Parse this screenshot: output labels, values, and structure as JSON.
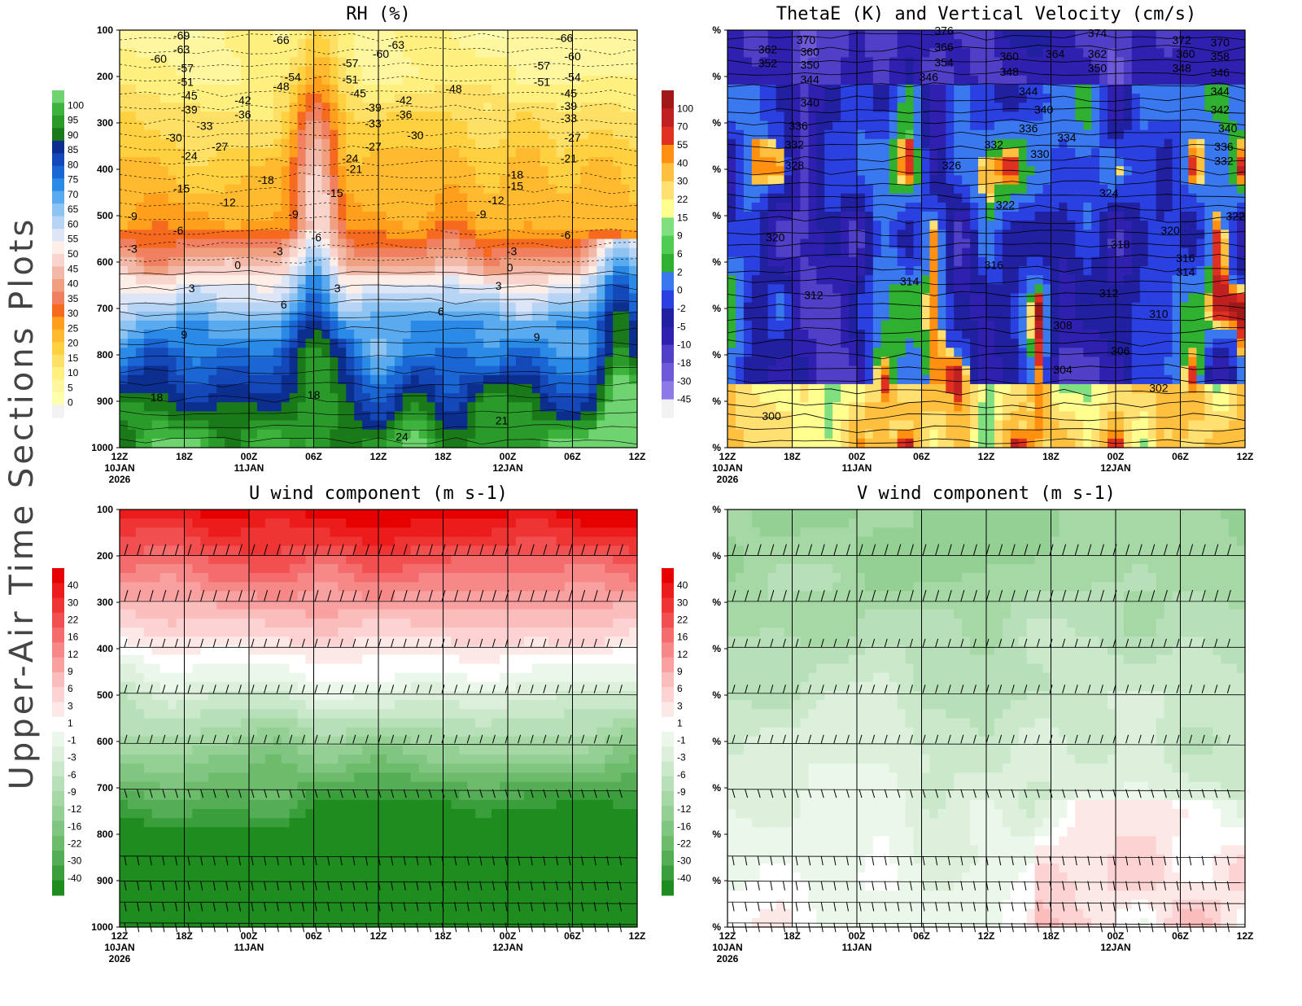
{
  "side_title": "Upper-Air Time Sections Plots",
  "colors": {
    "rh": [
      "#f2f2f2",
      "#ffffb0",
      "#fff7a0",
      "#fff080",
      "#ffe066",
      "#ffd040",
      "#ffba30",
      "#ff9f1c",
      "#f56a1e",
      "#f08060",
      "#f0a080",
      "#f2b8a8",
      "#f8d4cc",
      "#fdeee8",
      "#dde6f7",
      "#b8d4f5",
      "#8ec4f2",
      "#5aaaf0",
      "#2a8ae6",
      "#1a66d4",
      "#1448b8",
      "#0b2e8f",
      "#1a7a1a",
      "#2a9a2a",
      "#3db23d",
      "#6fd36f"
    ],
    "theta_w": [
      "#f2f2f2",
      "#8e7ae6",
      "#6e5ad8",
      "#5040c8",
      "#3020b0",
      "#2020a0",
      "#2a40e0",
      "#3a78f0",
      "#30b030",
      "#50cc50",
      "#80e080",
      "#ffff90",
      "#ffe070",
      "#ffc040",
      "#ff9010",
      "#e03020",
      "#c02020",
      "#a01818"
    ],
    "uv": [
      "#1e8c1e",
      "#3a9e3a",
      "#55ae55",
      "#6cbc6c",
      "#80c680",
      "#94d094",
      "#a6d8a6",
      "#b8e0b8",
      "#cae8ca",
      "#dcf0dc",
      "#ecf7ec",
      "#ffffff",
      "#fde8e8",
      "#fcd2d2",
      "#fbbcbc",
      "#f9a0a0",
      "#f78888",
      "#f56c6c",
      "#f25050",
      "#ef3434",
      "#ec1c1c",
      "#e60000"
    ]
  },
  "chart_data": [
    {
      "type": "heatmap",
      "id": "rh",
      "title": "RH (%)",
      "x_labels": [
        "12Z",
        "18Z",
        "00Z",
        "06Z",
        "12Z",
        "18Z",
        "00Z",
        "06Z",
        "12Z"
      ],
      "x_dates": {
        "0": "10JAN",
        "2": "11JAN",
        "6": "12JAN"
      },
      "x_year": "2026",
      "y_labels": [
        "100",
        "200",
        "300",
        "400",
        "500",
        "600",
        "700",
        "800",
        "900",
        "1000"
      ],
      "colorbar_ticks": [
        "100",
        "95",
        "90",
        "85",
        "80",
        "75",
        "70",
        "65",
        "60",
        "55",
        "50",
        "45",
        "40",
        "35",
        "30",
        "25",
        "20",
        "15",
        "10",
        "5",
        "0"
      ],
      "contour_labels": [
        {
          "text": "-69",
          "x": 1.4,
          "y": 120
        },
        {
          "text": "-63",
          "x": 1.4,
          "y": 150
        },
        {
          "text": "-66",
          "x": 4.0,
          "y": 130
        },
        {
          "text": "-63",
          "x": 7.0,
          "y": 140
        },
        {
          "text": "-66",
          "x": 11.4,
          "y": 125
        },
        {
          "text": "-60",
          "x": 0.8,
          "y": 170
        },
        {
          "text": "-57",
          "x": 1.5,
          "y": 190
        },
        {
          "text": "-60",
          "x": 6.6,
          "y": 160
        },
        {
          "text": "-60",
          "x": 11.6,
          "y": 165
        },
        {
          "text": "-57",
          "x": 5.8,
          "y": 180
        },
        {
          "text": "-57",
          "x": 10.8,
          "y": 185
        },
        {
          "text": "-54",
          "x": 4.3,
          "y": 210
        },
        {
          "text": "-54",
          "x": 11.6,
          "y": 210
        },
        {
          "text": "-51",
          "x": 1.5,
          "y": 220
        },
        {
          "text": "-51",
          "x": 5.8,
          "y": 215
        },
        {
          "text": "-51",
          "x": 10.8,
          "y": 220
        },
        {
          "text": "-48",
          "x": 4.0,
          "y": 230
        },
        {
          "text": "-48",
          "x": 8.5,
          "y": 235
        },
        {
          "text": "-45",
          "x": 1.6,
          "y": 250
        },
        {
          "text": "-45",
          "x": 6.0,
          "y": 245
        },
        {
          "text": "-45",
          "x": 11.5,
          "y": 245
        },
        {
          "text": "-42",
          "x": 3.0,
          "y": 260
        },
        {
          "text": "-42",
          "x": 7.2,
          "y": 260
        },
        {
          "text": "-39",
          "x": 1.6,
          "y": 280
        },
        {
          "text": "-39",
          "x": 6.4,
          "y": 275
        },
        {
          "text": "-39",
          "x": 11.5,
          "y": 272
        },
        {
          "text": "-36",
          "x": 3.0,
          "y": 290
        },
        {
          "text": "-36",
          "x": 7.2,
          "y": 290
        },
        {
          "text": "-33",
          "x": 2.0,
          "y": 315
        },
        {
          "text": "-33",
          "x": 6.4,
          "y": 310
        },
        {
          "text": "-33",
          "x": 11.5,
          "y": 298
        },
        {
          "text": "-30",
          "x": 1.2,
          "y": 340
        },
        {
          "text": "-30",
          "x": 7.5,
          "y": 335
        },
        {
          "text": "-27",
          "x": 2.4,
          "y": 360
        },
        {
          "text": "-27",
          "x": 6.4,
          "y": 360
        },
        {
          "text": "-27",
          "x": 11.6,
          "y": 340
        },
        {
          "text": "-24",
          "x": 1.6,
          "y": 380
        },
        {
          "text": "-24",
          "x": 5.8,
          "y": 385
        },
        {
          "text": "-21",
          "x": 5.9,
          "y": 408
        },
        {
          "text": "-21",
          "x": 11.5,
          "y": 385
        },
        {
          "text": "-18",
          "x": 3.6,
          "y": 432
        },
        {
          "text": "-18",
          "x": 10.1,
          "y": 420
        },
        {
          "text": "-15",
          "x": 1.4,
          "y": 450
        },
        {
          "text": "-15",
          "x": 5.4,
          "y": 460
        },
        {
          "text": "-15",
          "x": 10.1,
          "y": 445
        },
        {
          "text": "-12",
          "x": 2.6,
          "y": 480
        },
        {
          "text": "-12",
          "x": 9.6,
          "y": 475
        },
        {
          "text": "-9",
          "x": 0.2,
          "y": 510
        },
        {
          "text": "-9",
          "x": 4.4,
          "y": 505
        },
        {
          "text": "-9",
          "x": 9.3,
          "y": 505
        },
        {
          "text": "-6",
          "x": 1.4,
          "y": 540
        },
        {
          "text": "-6",
          "x": 5.0,
          "y": 555
        },
        {
          "text": "-6",
          "x": 11.5,
          "y": 550
        },
        {
          "text": "-3",
          "x": 0.2,
          "y": 580
        },
        {
          "text": "-3",
          "x": 4.0,
          "y": 585
        },
        {
          "text": "-3",
          "x": 10.1,
          "y": 585
        },
        {
          "text": "0",
          "x": 3.0,
          "y": 615
        },
        {
          "text": "0",
          "x": 10.1,
          "y": 620
        },
        {
          "text": "3",
          "x": 1.8,
          "y": 665
        },
        {
          "text": "3",
          "x": 5.6,
          "y": 665
        },
        {
          "text": "3",
          "x": 9.8,
          "y": 660
        },
        {
          "text": "6",
          "x": 4.2,
          "y": 700
        },
        {
          "text": "6",
          "x": 8.3,
          "y": 715
        },
        {
          "text": "9",
          "x": 1.6,
          "y": 765
        },
        {
          "text": "9",
          "x": 10.8,
          "y": 770
        },
        {
          "text": "18",
          "x": 0.8,
          "y": 900
        },
        {
          "text": "18",
          "x": 4.9,
          "y": 895
        },
        {
          "text": "21",
          "x": 9.8,
          "y": 950
        },
        {
          "text": "24",
          "x": 7.2,
          "y": 985
        }
      ]
    },
    {
      "type": "heatmap",
      "id": "theta",
      "title": "ThetaE (K) and Vertical Velocity (cm/s)",
      "x_labels": [
        "12Z",
        "18Z",
        "00Z",
        "06Z",
        "12Z",
        "18Z",
        "00Z",
        "06Z",
        "12Z"
      ],
      "x_dates": {
        "0": "10JAN",
        "2": "11JAN",
        "6": "12JAN"
      },
      "x_year": "2026",
      "y_labels": [
        "%",
        "%",
        "%",
        "%",
        "%",
        "%",
        "%",
        "%",
        "%",
        "%"
      ],
      "colorbar_ticks": [
        "100",
        "70",
        "55",
        "40",
        "30",
        "22",
        "15",
        "9",
        "6",
        "2",
        "0",
        "-2",
        "-5",
        "-10",
        "-18",
        "-30",
        "-45"
      ],
      "contour_labels": [
        {
          "text": "376",
          "x": 5.4,
          "y": 110
        },
        {
          "text": "374",
          "x": 9.4,
          "y": 115
        },
        {
          "text": "370",
          "x": 1.8,
          "y": 130
        },
        {
          "text": "372",
          "x": 11.6,
          "y": 130
        },
        {
          "text": "370",
          "x": 12.6,
          "y": 135
        },
        {
          "text": "362",
          "x": 0.8,
          "y": 150
        },
        {
          "text": "366",
          "x": 5.4,
          "y": 145
        },
        {
          "text": "360",
          "x": 1.9,
          "y": 155
        },
        {
          "text": "364",
          "x": 8.3,
          "y": 160
        },
        {
          "text": "362",
          "x": 9.4,
          "y": 160
        },
        {
          "text": "360",
          "x": 7.1,
          "y": 165
        },
        {
          "text": "360",
          "x": 11.7,
          "y": 160
        },
        {
          "text": "358",
          "x": 12.6,
          "y": 165
        },
        {
          "text": "352",
          "x": 0.8,
          "y": 180
        },
        {
          "text": "350",
          "x": 1.9,
          "y": 183
        },
        {
          "text": "354",
          "x": 5.4,
          "y": 178
        },
        {
          "text": "350",
          "x": 9.4,
          "y": 190
        },
        {
          "text": "348",
          "x": 7.1,
          "y": 198
        },
        {
          "text": "348",
          "x": 11.6,
          "y": 190
        },
        {
          "text": "346",
          "x": 5.0,
          "y": 210
        },
        {
          "text": "346",
          "x": 12.6,
          "y": 200
        },
        {
          "text": "344",
          "x": 1.9,
          "y": 215
        },
        {
          "text": "344",
          "x": 7.6,
          "y": 240
        },
        {
          "text": "344",
          "x": 12.6,
          "y": 240
        },
        {
          "text": "340",
          "x": 1.9,
          "y": 265
        },
        {
          "text": "340",
          "x": 8.0,
          "y": 280
        },
        {
          "text": "342",
          "x": 12.6,
          "y": 280
        },
        {
          "text": "336",
          "x": 1.6,
          "y": 315
        },
        {
          "text": "336",
          "x": 7.6,
          "y": 320
        },
        {
          "text": "340",
          "x": 12.8,
          "y": 320
        },
        {
          "text": "334",
          "x": 8.6,
          "y": 340
        },
        {
          "text": "332",
          "x": 1.5,
          "y": 355
        },
        {
          "text": "332",
          "x": 6.7,
          "y": 355
        },
        {
          "text": "330",
          "x": 7.9,
          "y": 375
        },
        {
          "text": "336",
          "x": 12.7,
          "y": 360
        },
        {
          "text": "332",
          "x": 12.7,
          "y": 390
        },
        {
          "text": "328",
          "x": 1.5,
          "y": 400
        },
        {
          "text": "326",
          "x": 5.6,
          "y": 400
        },
        {
          "text": "324",
          "x": 9.7,
          "y": 460
        },
        {
          "text": "322",
          "x": 7.0,
          "y": 485
        },
        {
          "text": "322",
          "x": 13.0,
          "y": 510
        },
        {
          "text": "320",
          "x": 1.0,
          "y": 555
        },
        {
          "text": "320",
          "x": 11.3,
          "y": 540
        },
        {
          "text": "318",
          "x": 10.0,
          "y": 570
        },
        {
          "text": "316",
          "x": 6.7,
          "y": 615
        },
        {
          "text": "316",
          "x": 11.7,
          "y": 600
        },
        {
          "text": "314",
          "x": 4.5,
          "y": 650
        },
        {
          "text": "314",
          "x": 11.7,
          "y": 630
        },
        {
          "text": "312",
          "x": 2.0,
          "y": 680
        },
        {
          "text": "312",
          "x": 9.7,
          "y": 675
        },
        {
          "text": "310",
          "x": 11.0,
          "y": 720
        },
        {
          "text": "308",
          "x": 8.5,
          "y": 745
        },
        {
          "text": "306",
          "x": 10.0,
          "y": 800
        },
        {
          "text": "304",
          "x": 8.5,
          "y": 840
        },
        {
          "text": "302",
          "x": 11.0,
          "y": 880
        },
        {
          "text": "300",
          "x": 0.9,
          "y": 940
        }
      ]
    },
    {
      "type": "heatmap",
      "id": "u",
      "title": "U wind component (m s-1)",
      "x_labels": [
        "12Z",
        "18Z",
        "00Z",
        "06Z",
        "12Z",
        "18Z",
        "00Z",
        "06Z",
        "12Z"
      ],
      "x_dates": {
        "0": "10JAN",
        "2": "11JAN",
        "6": "12JAN"
      },
      "x_year": "2026",
      "y_labels": [
        "100",
        "200",
        "300",
        "400",
        "500",
        "600",
        "700",
        "800",
        "900",
        "1000"
      ],
      "colorbar_ticks": [
        "40",
        "30",
        "22",
        "16",
        "12",
        "9",
        "6",
        "3",
        "1",
        "-1",
        "-3",
        "-6",
        "-9",
        "-12",
        "-16",
        "-22",
        "-30",
        "-40"
      ]
    },
    {
      "type": "heatmap",
      "id": "v",
      "title": "V wind component (m s-1)",
      "x_labels": [
        "12Z",
        "18Z",
        "00Z",
        "06Z",
        "12Z",
        "18Z",
        "00Z",
        "06Z",
        "12Z"
      ],
      "x_dates": {
        "0": "10JAN",
        "2": "11JAN",
        "6": "12JAN"
      },
      "x_year": "2026",
      "y_labels": [
        "%",
        "%",
        "%",
        "%",
        "%",
        "%",
        "%",
        "%",
        "%",
        "%"
      ],
      "colorbar_ticks": [
        "40",
        "30",
        "22",
        "16",
        "12",
        "9",
        "6",
        "3",
        "1",
        "-1",
        "-3",
        "-6",
        "-9",
        "-12",
        "-16",
        "-22",
        "-30",
        "-40"
      ]
    }
  ]
}
